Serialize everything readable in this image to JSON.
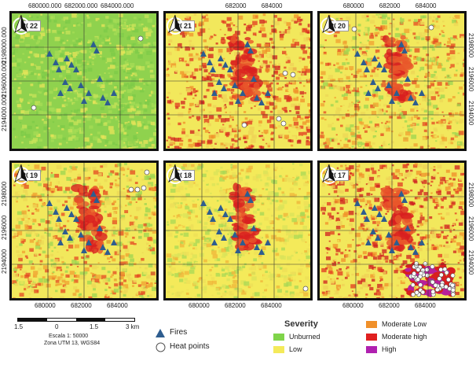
{
  "panels": [
    {
      "year": "2022",
      "tone": "green",
      "top_ticks": [
        "680000.000",
        "682000.000",
        "684000.000"
      ],
      "left_ticks": [
        "2198000.000",
        "2196000.000",
        "2194000.000"
      ],
      "right_ticks": [],
      "bottom_ticks": []
    },
    {
      "year": "2021",
      "tone": "red",
      "top_ticks": [
        "682000",
        "684000"
      ],
      "left_ticks": [],
      "right_ticks": [],
      "bottom_ticks": []
    },
    {
      "year": "2020",
      "tone": "mixed",
      "top_ticks": [
        "680000",
        "682000",
        "684000"
      ],
      "left_ticks": [],
      "right_ticks": [
        "2198000",
        "2196000",
        "2194000"
      ],
      "bottom_ticks": []
    },
    {
      "year": "2019",
      "tone": "mixed",
      "top_ticks": [],
      "left_ticks": [
        "2198000",
        "2196000",
        "2194000"
      ],
      "right_ticks": [],
      "bottom_ticks": [
        "680000",
        "682000",
        "684000"
      ]
    },
    {
      "year": "2018",
      "tone": "yellow",
      "top_ticks": [],
      "left_ticks": [],
      "right_ticks": [],
      "bottom_ticks": [
        "680000",
        "682000",
        "684000"
      ]
    },
    {
      "year": "2017",
      "tone": "red",
      "top_ticks": [],
      "left_ticks": [],
      "right_ticks": [
        "2198000",
        "2196000",
        "2194000"
      ],
      "bottom_ticks": [
        "680000",
        "682000",
        "684000"
      ]
    }
  ],
  "scale": {
    "labels": [
      "1.5",
      "0",
      "1.5",
      "3 km"
    ],
    "line1": "Escala 1: 50000",
    "line2": "Zona UTM 13, WGS84"
  },
  "legend": {
    "fires": "Fires",
    "heat_points": "Heat points",
    "severity_title": "Severity",
    "classes": [
      {
        "label": "Unburned",
        "color": "#7fd44a"
      },
      {
        "label": "Low",
        "color": "#f4ea5a"
      },
      {
        "label": "Moderate Low",
        "color": "#f0902a"
      },
      {
        "label": "Moderate high",
        "color": "#e02020"
      },
      {
        "label": "High",
        "color": "#b020b0"
      }
    ],
    "fire_color": "#2e5d8f"
  }
}
